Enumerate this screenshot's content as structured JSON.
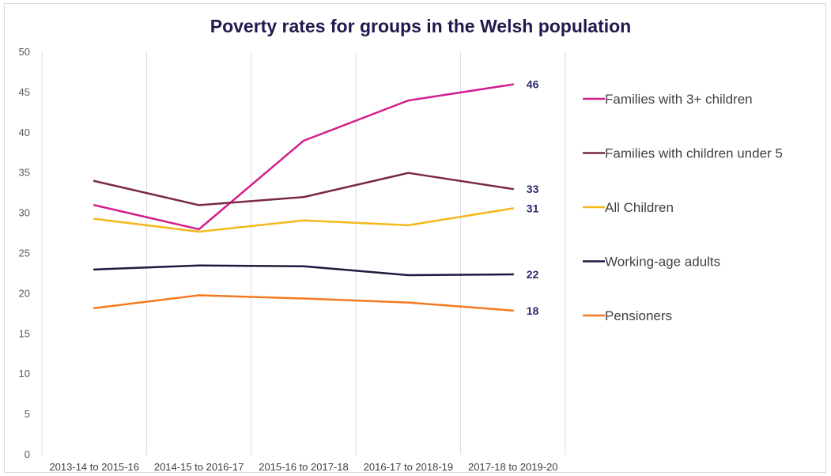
{
  "chart_data": {
    "type": "line",
    "title": "Poverty rates for groups in the Welsh population",
    "xlabel": "",
    "ylabel": "",
    "ylim": [
      0,
      50
    ],
    "yticks": [
      0,
      5,
      10,
      15,
      20,
      25,
      30,
      35,
      40,
      45,
      50
    ],
    "categories": [
      "2013-14 to 2015-16",
      "2014-15 to 2016-17",
      "2015-16 to 2017-18",
      "2016-17 to 2018-19",
      "2017-18 to 2019-20"
    ],
    "grid": "vertical",
    "legend_position": "right",
    "series": [
      {
        "name": "Families with 3+ children",
        "color": "#d41d8c",
        "values": [
          31,
          28,
          39,
          44,
          46
        ],
        "end_label": "46"
      },
      {
        "name": "Families with children under 5",
        "color": "#7a2a44",
        "values": [
          34,
          31,
          32,
          35,
          33
        ],
        "end_label": "33"
      },
      {
        "name": "All Children",
        "color": "#f5b81b",
        "values": [
          29.3,
          27.7,
          29.1,
          28.5,
          30.6
        ],
        "end_label": "31"
      },
      {
        "name": "Working-age adults",
        "color": "#1f1a3d",
        "values": [
          23,
          23.5,
          23.4,
          22.3,
          22.4
        ],
        "end_label": "22"
      },
      {
        "name": "Pensioners",
        "color": "#f5781e",
        "values": [
          18.2,
          19.8,
          19.4,
          18.9,
          17.9
        ],
        "end_label": "18"
      }
    ]
  }
}
